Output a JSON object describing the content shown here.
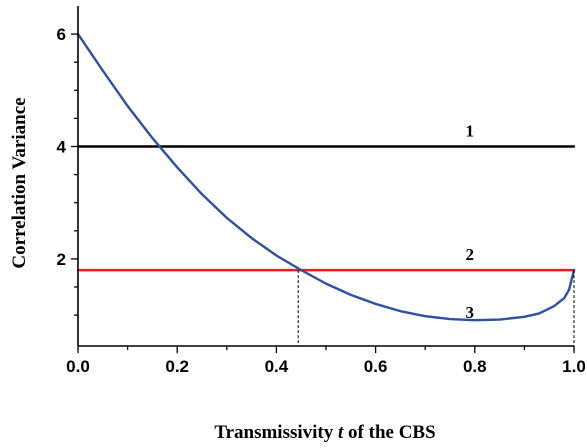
{
  "chart_data": {
    "type": "line",
    "xlabel_parts": {
      "before": "Transmissivity ",
      "italic": "t",
      "after": " of the CBS"
    },
    "ylabel": "Correlation Variance",
    "xlim": [
      0.0,
      1.0
    ],
    "ylim": [
      0.45,
      6.5
    ],
    "x_ticks": [
      "0.0",
      "0.2",
      "0.4",
      "0.6",
      "0.8",
      "1.0"
    ],
    "y_ticks": [
      "2",
      "4",
      "6"
    ],
    "grid": false,
    "series": [
      {
        "label": "1",
        "color": "#000000",
        "x": [
          0.0,
          1.0
        ],
        "y": [
          4.0,
          4.0
        ],
        "label_pos": [
          0.79,
          4.18
        ]
      },
      {
        "label": "2",
        "color": "#ee1c1c",
        "x": [
          0.0,
          1.0
        ],
        "y": [
          1.8,
          1.8
        ],
        "label_pos": [
          0.79,
          1.98
        ]
      },
      {
        "label": "3",
        "color": "#2e4fa3",
        "x": [
          0.0,
          0.05,
          0.1,
          0.15,
          0.2,
          0.25,
          0.3,
          0.35,
          0.4,
          0.45,
          0.5,
          0.55,
          0.6,
          0.65,
          0.7,
          0.75,
          0.8,
          0.85,
          0.9,
          0.93,
          0.96,
          0.98,
          0.99,
          1.0
        ],
        "y": [
          6.0,
          5.35,
          4.72,
          4.15,
          3.63,
          3.15,
          2.73,
          2.37,
          2.06,
          1.8,
          1.56,
          1.36,
          1.2,
          1.07,
          0.98,
          0.93,
          0.91,
          0.92,
          0.97,
          1.03,
          1.16,
          1.3,
          1.45,
          1.8
        ],
        "label_pos": [
          0.79,
          0.95
        ]
      }
    ],
    "annotations": [
      {
        "type": "vline",
        "x": 0.444,
        "y_to": 1.8,
        "style": "dashed"
      },
      {
        "type": "vline",
        "x": 1.0,
        "y_to": 1.8,
        "style": "dashed"
      }
    ]
  }
}
